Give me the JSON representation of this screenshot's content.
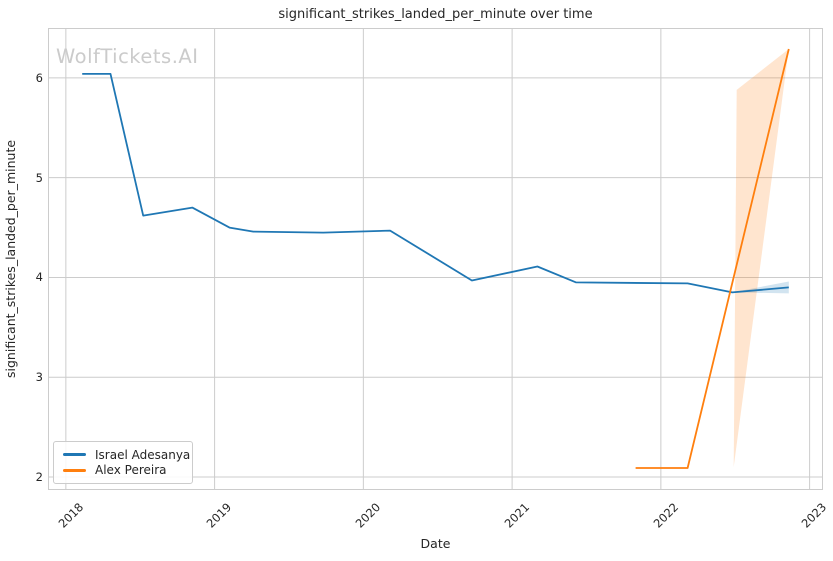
{
  "watermark": {
    "text": "WolfTickets.AI",
    "color": "#cbcbcb"
  },
  "chart_data": {
    "type": "line",
    "title": "significant_strikes_landed_per_minute over time",
    "xlabel": "Date",
    "ylabel": "significant_strikes_landed_per_minute",
    "xlim": [
      2017.88,
      2023.09
    ],
    "ylim": [
      1.87,
      6.5
    ],
    "x_ticks": [
      2018,
      2019,
      2020,
      2021,
      2022,
      2023
    ],
    "x_tick_labels": [
      "2018",
      "2019",
      "2020",
      "2021",
      "2022",
      "2023"
    ],
    "y_ticks": [
      2,
      3,
      4,
      5,
      6
    ],
    "y_tick_labels": [
      "2",
      "3",
      "4",
      "5",
      "6"
    ],
    "grid": true,
    "grid_color": "#cccccc",
    "legend_position": "lower left",
    "series": [
      {
        "name": "Israel Adesanya",
        "color": "#1f77b4",
        "x": [
          2018.11,
          2018.3,
          2018.52,
          2018.85,
          2019.1,
          2019.26,
          2019.73,
          2020.18,
          2020.73,
          2021.17,
          2021.43,
          2022.18,
          2022.48,
          2022.86
        ],
        "y": [
          6.04,
          6.04,
          4.62,
          4.7,
          4.5,
          4.46,
          4.45,
          4.47,
          3.97,
          4.11,
          3.95,
          3.94,
          3.85,
          3.9
        ],
        "band": {
          "x": [
            2022.48,
            2022.86,
            2022.86
          ],
          "y": [
            3.85,
            3.96,
            3.84
          ]
        }
      },
      {
        "name": "Alex Pereira",
        "color": "#ff7f0e",
        "x": [
          2021.83,
          2022.18,
          2022.86
        ],
        "y": [
          2.09,
          2.09,
          6.29
        ],
        "band": {
          "x": [
            2022.49,
            2022.51,
            2022.86
          ],
          "y": [
            2.1,
            5.88,
            6.29
          ]
        }
      }
    ]
  }
}
